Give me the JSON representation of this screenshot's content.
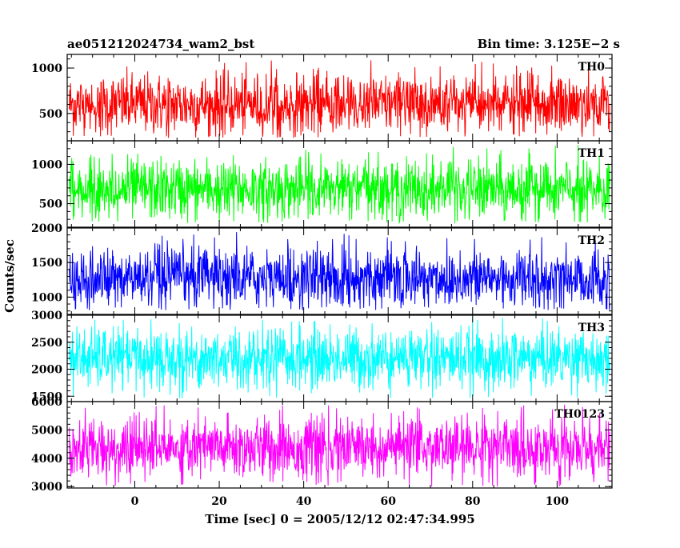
{
  "header": {
    "left_title": "ae051212024734_wam2_bst",
    "right_title": "Bin time: 3.125E−2 s"
  },
  "axes": {
    "ylabel": "Counts/sec",
    "xlabel": "Time [sec] 0 = 2005/12/12 02:47:34.995"
  },
  "chart_data": {
    "type": "line",
    "x_range": [
      -16,
      113
    ],
    "x_ticks": [
      0,
      20,
      40,
      60,
      80,
      100
    ],
    "x_tick_labels": [
      "0",
      "20",
      "40",
      "60",
      "80",
      "100"
    ],
    "data_x_range": [
      -15.5,
      112.5
    ],
    "bin_time": 0.03125,
    "grid": false,
    "panels": [
      {
        "name": "TH0",
        "color": "#ff0000",
        "ylim": [
          200,
          1150
        ],
        "y_ticks": [
          500,
          1000
        ],
        "y_tick_labels": [
          "500",
          "1000"
        ],
        "mean": 600,
        "low": 230,
        "high": 1100
      },
      {
        "name": "TH1",
        "color": "#00ff00",
        "ylim": [
          200,
          1300
        ],
        "y_ticks": [
          500,
          1000
        ],
        "y_tick_labels": [
          "500",
          "1000"
        ],
        "mean": 680,
        "low": 250,
        "high": 1250
      },
      {
        "name": "TH2",
        "color": "#0000ff",
        "ylim": [
          750,
          2000
        ],
        "y_ticks": [
          1000,
          1500,
          2000
        ],
        "y_tick_labels": [
          "1000",
          "1500",
          "2000"
        ],
        "mean": 1270,
        "low": 800,
        "high": 1980
      },
      {
        "name": "TH3",
        "color": "#00ffff",
        "ylim": [
          1400,
          3000
        ],
        "y_ticks": [
          1500,
          2000,
          2500,
          3000
        ],
        "y_tick_labels": [
          "1500",
          "2000",
          "2500",
          "3000"
        ],
        "mean": 2200,
        "low": 1450,
        "high": 2950
      },
      {
        "name": "TH0123",
        "color": "#ff00ff",
        "ylim": [
          2950,
          6000
        ],
        "y_ticks": [
          3000,
          4000,
          5000,
          6000
        ],
        "y_tick_labels": [
          "3000",
          "4000",
          "5000",
          "6000"
        ],
        "mean": 4350,
        "low": 3000,
        "high": 5900
      }
    ]
  }
}
